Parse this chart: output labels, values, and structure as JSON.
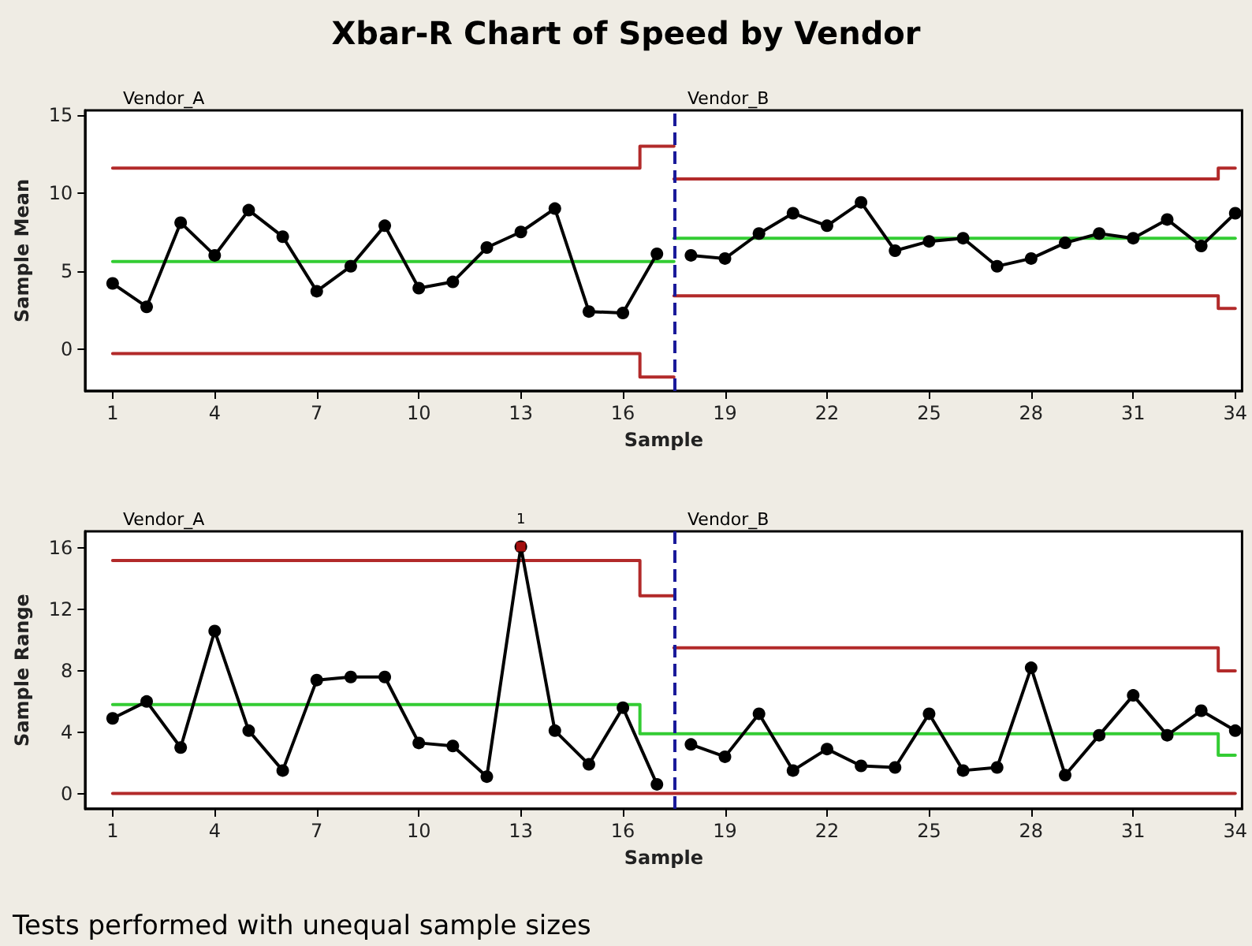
{
  "chart_data": [
    {
      "type": "line",
      "title": "Xbar-R Chart of Speed by Vendor",
      "xlabel": "Sample",
      "ylabel": "Sample Mean",
      "xlim": [
        0.2,
        34.2
      ],
      "xticks": [
        1,
        4,
        7,
        10,
        13,
        16,
        19,
        22,
        25,
        28,
        31,
        34
      ],
      "ylim": [
        -2.7,
        15.3
      ],
      "yticks": [
        0,
        5,
        10,
        15
      ],
      "grid": false,
      "annotations": [
        "Vendor_A",
        "Vendor_B"
      ],
      "ref_lines": [
        {
          "axis": "x",
          "value": 17.5,
          "color": "#1a1a9a",
          "line_style": "dashed"
        }
      ],
      "series": [
        {
          "type": "step",
          "color": "#b22a2a",
          "marker": "none",
          "x": [
            1,
            16.5,
            17.5
          ],
          "values": [
            11.6,
            13.0,
            13.0
          ]
        },
        {
          "type": "step",
          "color": "#b22a2a",
          "marker": "none",
          "x": [
            1,
            16.5,
            17.5
          ],
          "values": [
            -0.3,
            -1.8,
            -1.8
          ]
        },
        {
          "type": "step",
          "color": "#33cc33",
          "marker": "none",
          "x": [
            1,
            17.5
          ],
          "values": [
            5.6,
            5.6
          ]
        },
        {
          "type": "step",
          "color": "#b22a2a",
          "marker": "none",
          "x": [
            17.5,
            33.5,
            34
          ],
          "values": [
            10.9,
            11.6,
            11.6
          ]
        },
        {
          "type": "step",
          "color": "#b22a2a",
          "marker": "none",
          "x": [
            17.5,
            33.5,
            34
          ],
          "values": [
            3.4,
            2.6,
            2.6
          ]
        },
        {
          "type": "step",
          "color": "#33cc33",
          "marker": "none",
          "x": [
            17.5,
            34
          ],
          "values": [
            7.1,
            7.1
          ]
        },
        {
          "type": "line",
          "color": "#000000",
          "marker": "circle",
          "x": [
            1,
            2,
            3,
            4,
            5,
            6,
            7,
            8,
            9,
            10,
            11,
            12,
            13,
            14,
            15,
            16,
            17
          ],
          "values": [
            4.2,
            2.7,
            8.1,
            6.0,
            8.9,
            7.2,
            3.7,
            5.3,
            7.9,
            3.9,
            4.3,
            6.5,
            7.5,
            9.0,
            2.4,
            2.3,
            6.1
          ]
        },
        {
          "type": "line",
          "color": "#000000",
          "marker": "circle",
          "x": [
            18,
            19,
            20,
            21,
            22,
            23,
            24,
            25,
            26,
            27,
            28,
            29,
            30,
            31,
            32,
            33,
            34
          ],
          "values": [
            6.0,
            5.8,
            7.4,
            8.7,
            7.9,
            9.4,
            6.3,
            6.9,
            7.1,
            5.3,
            5.8,
            6.8,
            7.4,
            7.1,
            8.3,
            6.6,
            8.7
          ]
        }
      ]
    },
    {
      "type": "line",
      "xlabel": "Sample",
      "ylabel": "Sample Range",
      "xlim": [
        0.2,
        34.2
      ],
      "xticks": [
        1,
        4,
        7,
        10,
        13,
        16,
        19,
        22,
        25,
        28,
        31,
        34
      ],
      "ylim": [
        -1,
        17.1
      ],
      "yticks": [
        0,
        4,
        8,
        12,
        16
      ],
      "grid": false,
      "annotations": [
        "Vendor_A",
        "Vendor_B",
        {
          "text": "1",
          "x": 13,
          "y": 16.1
        },
        "Tests performed with unequal sample sizes"
      ],
      "ref_lines": [
        {
          "axis": "x",
          "value": 17.5,
          "color": "#1a1a9a",
          "line_style": "dashed"
        }
      ],
      "series": [
        {
          "type": "step",
          "color": "#b22a2a",
          "marker": "none",
          "x": [
            1,
            16.5,
            17.5
          ],
          "values": [
            15.2,
            12.9,
            12.9
          ]
        },
        {
          "type": "step",
          "color": "#b22a2a",
          "marker": "none",
          "x": [
            1,
            34
          ],
          "values": [
            0,
            0
          ]
        },
        {
          "type": "step",
          "color": "#33cc33",
          "marker": "none",
          "x": [
            1,
            16.5,
            33.5,
            34
          ],
          "values": [
            5.8,
            3.9,
            2.5,
            2.5
          ]
        },
        {
          "type": "step",
          "color": "#b22a2a",
          "marker": "none",
          "x": [
            17.5,
            33.5,
            34
          ],
          "values": [
            9.5,
            8.0,
            8.0
          ]
        },
        {
          "type": "line",
          "color": "#000000",
          "marker": "circle",
          "x": [
            1,
            2,
            3,
            4,
            5,
            6,
            7,
            8,
            9,
            10,
            11,
            12,
            13,
            14,
            15,
            16,
            17
          ],
          "values": [
            4.9,
            6.0,
            3.0,
            10.6,
            4.1,
            1.5,
            7.4,
            7.6,
            7.6,
            3.3,
            3.1,
            1.1,
            16.1,
            4.1,
            1.9,
            5.6,
            0.6
          ]
        },
        {
          "type": "line",
          "color": "#000000",
          "marker": "circle",
          "x": [
            18,
            19,
            20,
            21,
            22,
            23,
            24,
            25,
            26,
            27,
            28,
            29,
            30,
            31,
            32,
            33,
            34
          ],
          "values": [
            3.2,
            2.4,
            5.2,
            1.5,
            2.9,
            1.8,
            1.7,
            5.2,
            1.5,
            1.7,
            8.2,
            1.2,
            3.8,
            6.4,
            3.8,
            5.4,
            4.1
          ]
        },
        {
          "type": "scatter",
          "color": "#cc1111",
          "marker": "square",
          "x": [
            13
          ],
          "values": [
            16.1
          ]
        }
      ]
    }
  ]
}
